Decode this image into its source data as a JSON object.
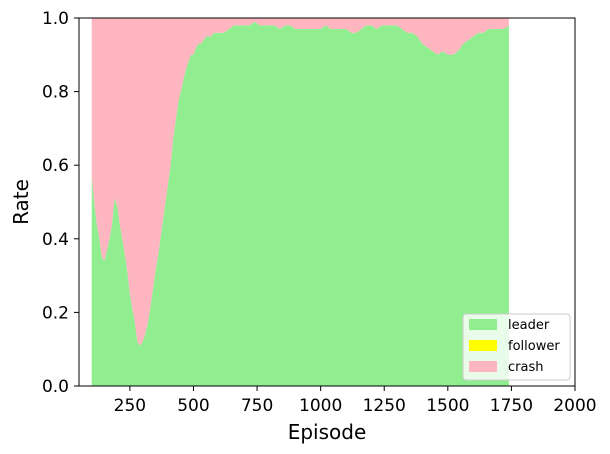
{
  "chart_data": {
    "type": "area",
    "stacked": true,
    "normalized": true,
    "xlabel": "Episode",
    "ylabel": "Rate",
    "xlim": [
      50,
      2000
    ],
    "ylim": [
      0,
      1
    ],
    "xticks": [
      250,
      500,
      750,
      1000,
      1250,
      1500,
      1750,
      2000
    ],
    "yticks": [
      0.0,
      0.2,
      0.4,
      0.6,
      0.8,
      1.0
    ],
    "xtick_labels": [
      "250",
      "500",
      "750",
      "1000",
      "1250",
      "1500",
      "1750",
      "2000"
    ],
    "ytick_labels": [
      "0.0",
      "0.2",
      "0.4",
      "0.6",
      "0.8",
      "1.0"
    ],
    "grid": false,
    "legend_position": "bottom-right",
    "x": [
      100,
      110,
      120,
      130,
      140,
      150,
      160,
      170,
      180,
      190,
      200,
      210,
      220,
      230,
      240,
      250,
      260,
      270,
      280,
      290,
      300,
      310,
      320,
      330,
      340,
      350,
      360,
      370,
      380,
      390,
      400,
      410,
      420,
      430,
      440,
      450,
      460,
      470,
      480,
      490,
      500,
      510,
      520,
      530,
      540,
      550,
      560,
      570,
      580,
      590,
      600,
      620,
      640,
      660,
      680,
      700,
      720,
      740,
      760,
      780,
      800,
      820,
      840,
      860,
      880,
      900,
      920,
      940,
      960,
      980,
      1000,
      1020,
      1040,
      1060,
      1080,
      1100,
      1120,
      1140,
      1160,
      1180,
      1200,
      1220,
      1240,
      1260,
      1280,
      1300,
      1320,
      1340,
      1360,
      1380,
      1400,
      1420,
      1440,
      1460,
      1480,
      1500,
      1520,
      1540,
      1560,
      1580,
      1600,
      1620,
      1640,
      1660,
      1680,
      1700,
      1720,
      1740
    ],
    "series": [
      {
        "name": "leader",
        "color": "#90ee90",
        "values": [
          0.57,
          0.5,
          0.44,
          0.4,
          0.35,
          0.34,
          0.37,
          0.4,
          0.44,
          0.51,
          0.49,
          0.44,
          0.4,
          0.36,
          0.31,
          0.25,
          0.21,
          0.17,
          0.12,
          0.11,
          0.12,
          0.14,
          0.17,
          0.21,
          0.26,
          0.31,
          0.35,
          0.4,
          0.45,
          0.5,
          0.55,
          0.6,
          0.67,
          0.72,
          0.77,
          0.8,
          0.83,
          0.86,
          0.88,
          0.9,
          0.9,
          0.92,
          0.93,
          0.93,
          0.94,
          0.95,
          0.95,
          0.95,
          0.96,
          0.96,
          0.96,
          0.96,
          0.97,
          0.98,
          0.98,
          0.98,
          0.98,
          0.99,
          0.98,
          0.98,
          0.98,
          0.98,
          0.97,
          0.98,
          0.98,
          0.97,
          0.97,
          0.97,
          0.97,
          0.97,
          0.97,
          0.98,
          0.97,
          0.97,
          0.97,
          0.97,
          0.96,
          0.96,
          0.97,
          0.98,
          0.98,
          0.97,
          0.98,
          0.98,
          0.98,
          0.98,
          0.97,
          0.96,
          0.96,
          0.95,
          0.93,
          0.92,
          0.91,
          0.9,
          0.91,
          0.9,
          0.9,
          0.91,
          0.93,
          0.94,
          0.95,
          0.96,
          0.96,
          0.97,
          0.97,
          0.97,
          0.97,
          0.98
        ]
      },
      {
        "name": "follower",
        "color": "#ffff00",
        "values": [
          0,
          0,
          0,
          0,
          0,
          0,
          0,
          0,
          0,
          0,
          0,
          0,
          0,
          0,
          0,
          0,
          0,
          0,
          0,
          0,
          0,
          0,
          0,
          0,
          0,
          0,
          0,
          0,
          0,
          0,
          0,
          0,
          0,
          0,
          0,
          0,
          0,
          0,
          0,
          0,
          0,
          0,
          0,
          0,
          0,
          0,
          0,
          0,
          0,
          0,
          0,
          0,
          0,
          0,
          0,
          0,
          0,
          0,
          0,
          0,
          0,
          0,
          0,
          0,
          0,
          0,
          0,
          0,
          0,
          0,
          0,
          0,
          0,
          0,
          0,
          0,
          0,
          0,
          0,
          0,
          0,
          0,
          0,
          0,
          0,
          0,
          0,
          0,
          0,
          0,
          0,
          0,
          0,
          0,
          0,
          0,
          0,
          0,
          0,
          0,
          0,
          0,
          0,
          0,
          0,
          0,
          0,
          0
        ]
      },
      {
        "name": "crash",
        "color": "#ffb6c1",
        "values": [
          0.43,
          0.5,
          0.56,
          0.6,
          0.65,
          0.66,
          0.63,
          0.6,
          0.56,
          0.49,
          0.51,
          0.56,
          0.6,
          0.64,
          0.69,
          0.75,
          0.79,
          0.83,
          0.88,
          0.89,
          0.88,
          0.86,
          0.83,
          0.79,
          0.74,
          0.69,
          0.65,
          0.6,
          0.55,
          0.5,
          0.45,
          0.4,
          0.33,
          0.28,
          0.23,
          0.2,
          0.17,
          0.14,
          0.12,
          0.1,
          0.1,
          0.08,
          0.07,
          0.07,
          0.06,
          0.05,
          0.05,
          0.05,
          0.04,
          0.04,
          0.04,
          0.04,
          0.03,
          0.02,
          0.02,
          0.02,
          0.02,
          0.01,
          0.02,
          0.02,
          0.02,
          0.02,
          0.03,
          0.02,
          0.02,
          0.03,
          0.03,
          0.03,
          0.03,
          0.03,
          0.03,
          0.02,
          0.03,
          0.03,
          0.03,
          0.03,
          0.04,
          0.04,
          0.03,
          0.02,
          0.02,
          0.03,
          0.02,
          0.02,
          0.02,
          0.02,
          0.03,
          0.04,
          0.04,
          0.05,
          0.07,
          0.08,
          0.09,
          0.1,
          0.09,
          0.1,
          0.1,
          0.09,
          0.07,
          0.06,
          0.05,
          0.04,
          0.04,
          0.03,
          0.03,
          0.03,
          0.03,
          0.02
        ]
      }
    ]
  }
}
